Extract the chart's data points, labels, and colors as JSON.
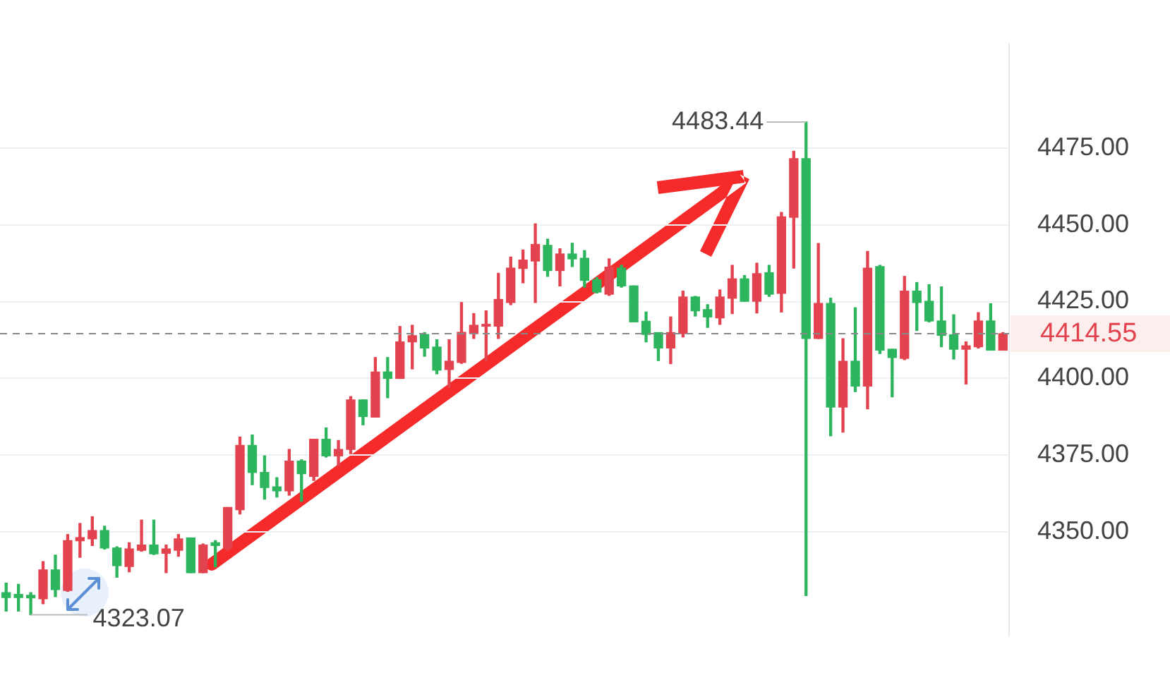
{
  "chart_data": {
    "type": "candlestick",
    "categories": [
      null,
      null,
      null,
      null,
      null,
      null,
      null,
      null,
      null,
      null,
      null,
      null,
      null,
      null,
      null,
      null,
      null,
      null,
      null,
      null,
      null,
      null,
      null,
      null,
      null,
      null,
      null,
      null,
      null,
      null,
      null,
      null,
      null,
      null,
      null,
      null,
      null,
      null,
      null,
      null,
      null,
      null,
      null,
      null,
      null,
      null,
      null,
      null,
      null,
      null,
      null,
      null,
      null,
      null,
      null,
      null,
      null,
      null,
      null,
      null,
      null,
      null,
      null,
      null,
      null,
      null,
      null,
      null,
      null,
      null,
      null,
      null,
      null,
      null,
      null,
      null,
      null,
      null,
      null,
      null,
      null,
      null
    ],
    "ohlc": [
      [
        4330.3,
        4333.4,
        4324.3,
        4328.7
      ],
      [
        4329.7,
        4333.0,
        4324.3,
        4328.7
      ],
      [
        4329.4,
        4330.3,
        4323.07,
        4328.6
      ],
      [
        4328.3,
        4340.4,
        4326.7,
        4337.7
      ],
      [
        4337.7,
        4342.5,
        4329.0,
        4331.3
      ],
      [
        4331.0,
        4349.2,
        4330.7,
        4347.2
      ],
      [
        4347.2,
        4352.8,
        4341.8,
        4348.2
      ],
      [
        4347.8,
        4355.0,
        4345.6,
        4350.5
      ],
      [
        4350.5,
        4351.9,
        4344.5,
        4344.8
      ],
      [
        4344.8,
        4345.2,
        4335.3,
        4339.1
      ],
      [
        4338.8,
        4346.5,
        4337.1,
        4344.5
      ],
      [
        4344.1,
        4353.9,
        4343.8,
        4345.8
      ],
      [
        4345.8,
        4353.9,
        4342.7,
        4342.9
      ],
      [
        4343.1,
        4345.8,
        4336.8,
        4344.5
      ],
      [
        4344.1,
        4349.2,
        4342.1,
        4347.8
      ],
      [
        4348.1,
        4348.1,
        4336.8,
        4336.8
      ],
      [
        4336.8,
        4346.1,
        4336.8,
        4345.8
      ],
      [
        4346.5,
        4347.2,
        4338.7,
        4345.6
      ],
      [
        4344.7,
        4358.0,
        4344.1,
        4358.0
      ],
      [
        4357.3,
        4380.9,
        4355.9,
        4378.2
      ],
      [
        4378.2,
        4381.6,
        4365.4,
        4369.4
      ],
      [
        4369.4,
        4374.8,
        4360.7,
        4364.5
      ],
      [
        4364.7,
        4367.7,
        4361.4,
        4363.4
      ],
      [
        4363.4,
        4376.9,
        4362.0,
        4373.1
      ],
      [
        4373.1,
        4373.5,
        4360.0,
        4369.0
      ],
      [
        4368.1,
        4380.2,
        4366.8,
        4380.2
      ],
      [
        4380.2,
        4383.9,
        4374.4,
        4374.8
      ],
      [
        4374.8,
        4379.8,
        4371.5,
        4376.9
      ],
      [
        4376.9,
        4394.1,
        4375.5,
        4393.0
      ],
      [
        4393.0,
        4393.0,
        4384.9,
        4387.6
      ],
      [
        4387.4,
        4406.8,
        4387.4,
        4402.1
      ],
      [
        4402.1,
        4406.8,
        4393.7,
        4400.0
      ],
      [
        4400.0,
        4416.9,
        4400.0,
        4411.9
      ],
      [
        4411.9,
        4417.3,
        4403.1,
        4413.9
      ],
      [
        4414.3,
        4414.9,
        4407.2,
        4409.9
      ],
      [
        4410.2,
        4412.6,
        4401.5,
        4402.7
      ],
      [
        4402.9,
        4412.6,
        4397.1,
        4405.6
      ],
      [
        4405.2,
        4424.7,
        4404.9,
        4415.0
      ],
      [
        4414.6,
        4421.1,
        4413.0,
        4417.3
      ],
      [
        4417.0,
        4422.0,
        4405.8,
        4417.6
      ],
      [
        4417.0,
        4434.2,
        4413.0,
        4425.7
      ],
      [
        4424.7,
        4439.5,
        4424.0,
        4435.9
      ],
      [
        4435.8,
        4441.8,
        4431.1,
        4438.5
      ],
      [
        4438.2,
        4450.3,
        4424.7,
        4443.6
      ],
      [
        4443.3,
        4445.3,
        4433.2,
        4435.1
      ],
      [
        4435.1,
        4442.2,
        4430.1,
        4440.5
      ],
      [
        4440.5,
        4444.0,
        4436.4,
        4438.9
      ],
      [
        4439.1,
        4441.6,
        4429.7,
        4431.9
      ],
      [
        4432.1,
        4432.8,
        4427.8,
        4428.1
      ],
      [
        4427.4,
        4438.9,
        4427.0,
        4436.2
      ],
      [
        4435.9,
        4436.8,
        4429.7,
        4430.1
      ],
      [
        4430.1,
        4430.1,
        4418.4,
        4418.4
      ],
      [
        4418.6,
        4421.6,
        4411.9,
        4414.3
      ],
      [
        4414.9,
        4414.9,
        4405.8,
        4409.9
      ],
      [
        4409.9,
        4420.0,
        4404.8,
        4414.9
      ],
      [
        4414.6,
        4428.4,
        4413.5,
        4426.5
      ],
      [
        4426.5,
        4426.7,
        4420.3,
        4422.0
      ],
      [
        4422.4,
        4424.0,
        4416.6,
        4420.0
      ],
      [
        4419.7,
        4428.8,
        4417.6,
        4426.5
      ],
      [
        4426.1,
        4436.8,
        4421.1,
        4432.4
      ],
      [
        4432.4,
        4433.5,
        4425.1,
        4425.1
      ],
      [
        4425.1,
        4437.5,
        4421.3,
        4434.1
      ],
      [
        4434.4,
        4436.8,
        4426.7,
        4427.4
      ],
      [
        4427.7,
        4454.0,
        4421.6,
        4452.6
      ],
      [
        4452.4,
        4473.9,
        4435.9,
        4471.5
      ],
      [
        4471.5,
        4483.44,
        4329.3,
        4413.0
      ],
      [
        4413.0,
        4443.9,
        4413.0,
        4424.4
      ],
      [
        4424.4,
        4426.1,
        4381.3,
        4390.7
      ],
      [
        4390.7,
        4412.9,
        4382.5,
        4405.6
      ],
      [
        4405.6,
        4423.0,
        4395.7,
        4397.5
      ],
      [
        4397.5,
        4441.3,
        4390.1,
        4435.9
      ],
      [
        4436.4,
        4436.8,
        4408.1,
        4409.2
      ],
      [
        4409.5,
        4409.5,
        4394.0,
        4406.8
      ],
      [
        4406.5,
        4433.2,
        4406.1,
        4428.4
      ],
      [
        4428.4,
        4431.2,
        4415.6,
        4424.7
      ],
      [
        4425.1,
        4430.5,
        4418.4,
        4418.7
      ],
      [
        4418.7,
        4429.8,
        4410.3,
        4414.0
      ],
      [
        4414.2,
        4420.7,
        4406.3,
        4409.5
      ],
      [
        4409.5,
        4411.9,
        4398.2,
        4410.6
      ],
      [
        4410.3,
        4421.4,
        4409.9,
        4418.7
      ],
      [
        4418.7,
        4424.3,
        4409.2,
        4409.2
      ],
      [
        4409.2,
        4414.9,
        4409.2,
        4414.55
      ]
    ],
    "colors": [
      "#2db55d",
      "#2db55d",
      "#2db55d",
      "#e2434f",
      "#2db55d",
      "#e2434f",
      "#e2434f",
      "#e2434f",
      "#2db55d",
      "#2db55d",
      "#e2434f",
      "#e2434f",
      "#2db55d",
      "#e2434f",
      "#e2434f",
      "#2db55d",
      "#e2434f",
      "#2db55d",
      "#e2434f",
      "#e2434f",
      "#2db55d",
      "#2db55d",
      "#2db55d",
      "#e2434f",
      "#2db55d",
      "#e2434f",
      "#2db55d",
      "#e2434f",
      "#e2434f",
      "#2db55d",
      "#e2434f",
      "#2db55d",
      "#e2434f",
      "#e2434f",
      "#2db55d",
      "#2db55d",
      "#e2434f",
      "#e2434f",
      "#e2434f",
      "#e2434f",
      "#e2434f",
      "#e2434f",
      "#e2434f",
      "#e2434f",
      "#2db55d",
      "#e2434f",
      "#2db55d",
      "#2db55d",
      "#2db55d",
      "#e2434f",
      "#2db55d",
      "#2db55d",
      "#2db55d",
      "#2db55d",
      "#e2434f",
      "#e2434f",
      "#2db55d",
      "#2db55d",
      "#e2434f",
      "#e2434f",
      "#2db55d",
      "#e2434f",
      "#2db55d",
      "#e2434f",
      "#e2434f",
      "#2db55d",
      "#e2434f",
      "#2db55d",
      "#e2434f",
      "#2db55d",
      "#e2434f",
      "#2db55d",
      "#2db55d",
      "#e2434f",
      "#2db55d",
      "#2db55d",
      "#2db55d",
      "#2db55d",
      "#e2434f",
      "#e2434f",
      "#2db55d",
      "#e2434f"
    ],
    "ylim": [
      4316,
      4509
    ],
    "yticks": [
      {
        "value": 4350,
        "label": "4350.00"
      },
      {
        "value": 4375,
        "label": "4375.00"
      },
      {
        "value": 4400,
        "label": "4400.00"
      },
      {
        "value": 4425,
        "label": "4425.00"
      },
      {
        "value": 4450,
        "label": "4450.00"
      },
      {
        "value": 4475,
        "label": "4475.00"
      }
    ],
    "grid": "y",
    "legend": false,
    "ref_lines": [
      {
        "axis": "y",
        "value": 4414.55,
        "label": "4414.55",
        "color": "#888888",
        "line_style": "dashed"
      }
    ],
    "annotations": [
      "4483.44",
      "4323.07"
    ]
  }
}
